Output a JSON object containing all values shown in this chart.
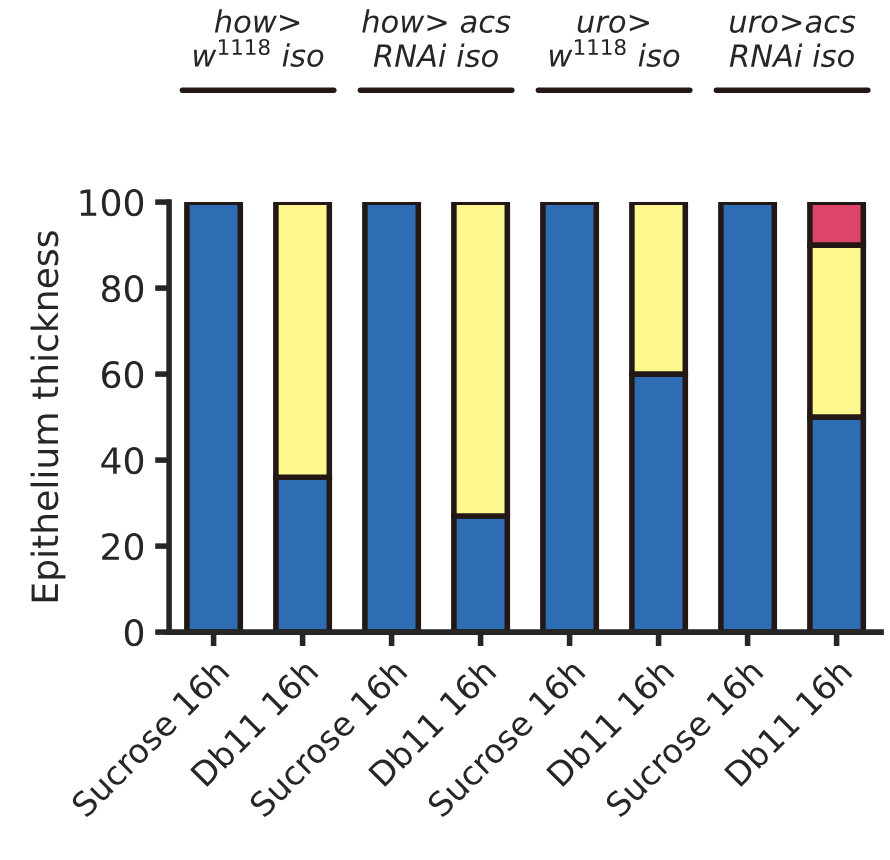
{
  "chart_data": {
    "type": "bar",
    "stacked": true,
    "ylabel": "Epithelium thickness",
    "categories": [
      "Sucrose 16h",
      "Db11 16h",
      "Sucrose 16h",
      "Db11 16h",
      "Sucrose 16h",
      "Db11 16h",
      "Sucrose 16h",
      "Db11 16h"
    ],
    "series": [
      {
        "color": "#2e6db4",
        "values": [
          100,
          36,
          100,
          27,
          100,
          60,
          100,
          50
        ]
      },
      {
        "color": "#fdf98f",
        "values": [
          null,
          64,
          null,
          73,
          null,
          40,
          null,
          40
        ]
      },
      {
        "color": "#dc4569",
        "values": [
          null,
          null,
          null,
          null,
          null,
          null,
          null,
          10
        ]
      }
    ],
    "ylim": [
      0,
      100
    ],
    "yticks": [
      0,
      20,
      40,
      60,
      80,
      100
    ],
    "annotations": [
      "how>\nw$^{1118}$ iso",
      "how> acs\nRNAi iso",
      "uro>\nw$^{1118}$ iso",
      "uro>acs\nRNAi iso"
    ],
    "grid": false,
    "legend": false
  }
}
